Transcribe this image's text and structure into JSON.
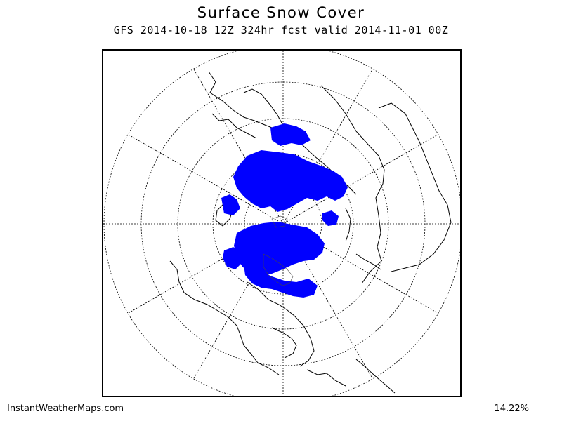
{
  "map": {
    "title": "Surface Snow Cover",
    "subtitle": "GFS 2014-10-18 12Z 324hr fcst valid 2014-11-01 00Z",
    "projection": "north-polar-stereographic",
    "colors": {
      "snow": "#0000ff",
      "coastline": "#000000",
      "grid": "#000000",
      "background": "#ffffff"
    }
  },
  "footer": {
    "source": "InstantWeatherMaps.com",
    "coverage_percent": "14.22%"
  }
}
